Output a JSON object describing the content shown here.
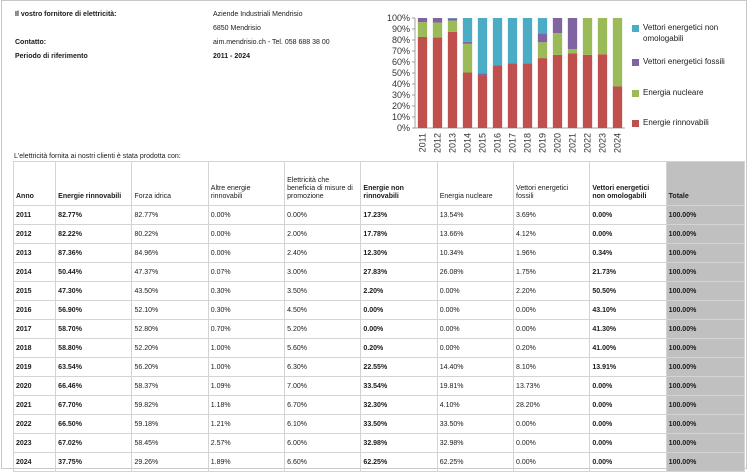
{
  "supplier": {
    "label": "Il vostro fornitore di elettricità:",
    "name_line1": "Aziende Industriali Mendrisio",
    "name_line2": "6850 Mendrisio",
    "contact_label": "Contatto:",
    "contact_value": "aim.mendrisio.ch  -  Tel. 058 688 38 00",
    "period_label": "Periodo di riferimento",
    "period_value": "2011 - 2024"
  },
  "colors": {
    "renewable": "#c0504d",
    "nuclear": "#9bbb59",
    "fossil": "#8064a2",
    "non_attributable": "#4bacc6"
  },
  "chart_data": {
    "type": "bar",
    "stacked": true,
    "categories": [
      "2011",
      "2012",
      "2013",
      "2014",
      "2015",
      "2016",
      "2017",
      "2018",
      "2019",
      "2020",
      "2021",
      "2022",
      "2023",
      "2024"
    ],
    "series": [
      {
        "name": "Energie rinnovabili",
        "color": "#c0504d",
        "values": [
          82.77,
          82.22,
          87.36,
          50.44,
          47.3,
          56.9,
          58.7,
          58.8,
          63.54,
          66.46,
          67.7,
          66.5,
          67.02,
          37.75
        ]
      },
      {
        "name": "Energia nucleare",
        "color": "#9bbb59",
        "values": [
          13.54,
          13.66,
          10.34,
          26.08,
          0,
          0,
          0,
          0,
          14.4,
          19.81,
          4.1,
          33.5,
          32.98,
          62.25
        ]
      },
      {
        "name": "Vettori energetici fossili",
        "color": "#8064a2",
        "values": [
          3.69,
          4.12,
          1.96,
          1.75,
          2.2,
          0,
          0,
          0.2,
          8.1,
          13.73,
          28.2,
          0,
          0,
          0
        ]
      },
      {
        "name": "Vettori energetici non omologabili",
        "color": "#4bacc6",
        "values": [
          0,
          0,
          0.34,
          21.73,
          50.5,
          43.1,
          41.3,
          41.0,
          13.91,
          0,
          0,
          0,
          0,
          0
        ]
      }
    ],
    "y_ticks": [
      "0%",
      "10%",
      "20%",
      "30%",
      "40%",
      "50%",
      "60%",
      "70%",
      "80%",
      "90%",
      "100%"
    ],
    "ylim": [
      0,
      100
    ],
    "grid": false,
    "legend_position": "right"
  },
  "legend": [
    {
      "label": "Vettori energetici non omologabili",
      "color": "#4bacc6"
    },
    {
      "label": "Vettori energetici fossili",
      "color": "#8064a2"
    },
    {
      "label": "Energia nucleare",
      "color": "#9bbb59"
    },
    {
      "label": "Energie rinnovabili",
      "color": "#c0504d"
    }
  ],
  "table": {
    "caption": "L'elettricità fornita ai nostri clienti è stata prodotta con:",
    "headers": [
      "Anno",
      "Energie rinnovabili",
      "Forza idrica",
      "Altre energie rinnovabili",
      "Elettricità che beneficia di misure di promozione",
      "Energie non rinnovabili",
      "Energia nucleare",
      "Vettori energetici fossili",
      "Vettori energetici non omologabili",
      "Totale"
    ],
    "rows": [
      [
        "2011",
        "82.77%",
        "82.77%",
        "0.00%",
        "0.00%",
        "17.23%",
        "13.54%",
        "3.69%",
        "0.00%",
        "100.00%"
      ],
      [
        "2012",
        "82.22%",
        "80.22%",
        "0.00%",
        "2.00%",
        "17.78%",
        "13.66%",
        "4.12%",
        "0.00%",
        "100.00%"
      ],
      [
        "2013",
        "87.36%",
        "84.96%",
        "0.00%",
        "2.40%",
        "12.30%",
        "10.34%",
        "1.96%",
        "0.34%",
        "100.00%"
      ],
      [
        "2014",
        "50.44%",
        "47.37%",
        "0.07%",
        "3.00%",
        "27.83%",
        "26.08%",
        "1.75%",
        "21.73%",
        "100.00%"
      ],
      [
        "2015",
        "47.30%",
        "43.50%",
        "0.30%",
        "3.50%",
        "2.20%",
        "0.00%",
        "2.20%",
        "50.50%",
        "100.00%"
      ],
      [
        "2016",
        "56.90%",
        "52.10%",
        "0.30%",
        "4.50%",
        "0.00%",
        "0.00%",
        "0.00%",
        "43.10%",
        "100.00%"
      ],
      [
        "2017",
        "58.70%",
        "52.80%",
        "0.70%",
        "5.20%",
        "0.00%",
        "0.00%",
        "0.00%",
        "41.30%",
        "100.00%"
      ],
      [
        "2018",
        "58.80%",
        "52.20%",
        "1.00%",
        "5.60%",
        "0.20%",
        "0.00%",
        "0.20%",
        "41.00%",
        "100.00%"
      ],
      [
        "2019",
        "63.54%",
        "56.20%",
        "1.00%",
        "6.30%",
        "22.55%",
        "14.40%",
        "8.10%",
        "13.91%",
        "100.00%"
      ],
      [
        "2020",
        "66.46%",
        "58.37%",
        "1.09%",
        "7.00%",
        "33.54%",
        "19.81%",
        "13.73%",
        "0.00%",
        "100.00%"
      ],
      [
        "2021",
        "67.70%",
        "59.82%",
        "1.18%",
        "6.70%",
        "32.30%",
        "4.10%",
        "28.20%",
        "0.00%",
        "100.00%"
      ],
      [
        "2022",
        "66.50%",
        "59.18%",
        "1.21%",
        "6.10%",
        "33.50%",
        "33.50%",
        "0.00%",
        "0.00%",
        "100.00%"
      ],
      [
        "2023",
        "67.02%",
        "58.45%",
        "2.57%",
        "6.00%",
        "32.98%",
        "32.98%",
        "0.00%",
        "0.00%",
        "100.00%"
      ],
      [
        "2024",
        "37.75%",
        "29.26%",
        "1.89%",
        "6.60%",
        "62.25%",
        "62.25%",
        "0.00%",
        "0.00%",
        "100.00%"
      ]
    ]
  }
}
